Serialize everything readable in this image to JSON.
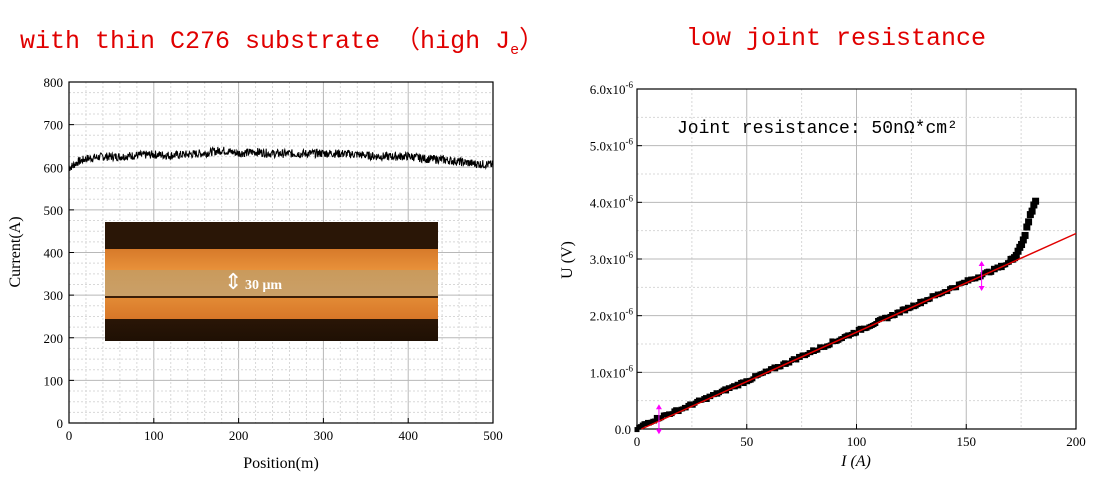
{
  "titles": {
    "left": "with thin C276 substrate （high J",
    "left_sub": "e",
    "left_close": "）",
    "right": "low joint resistance"
  },
  "inset": {
    "label": "30 μm"
  },
  "colors": {
    "title": "#e00000",
    "data": "#000000",
    "fit": "#e00000",
    "marker": "#ff00ff"
  },
  "chart_data": [
    {
      "type": "line",
      "xlabel": "Position(m)",
      "ylabel": "Current(A)",
      "xlim": [
        0,
        500
      ],
      "ylim": [
        0,
        800
      ],
      "xticks": [
        "0",
        "100",
        "200",
        "300",
        "400",
        "500"
      ],
      "yticks": [
        "0",
        "100",
        "200",
        "300",
        "400",
        "500",
        "600",
        "700",
        "800"
      ],
      "grid": true,
      "series": [
        {
          "x": [
            0,
            10,
            20,
            40,
            60,
            80,
            100,
            120,
            140,
            160,
            180,
            200,
            220,
            240,
            260,
            280,
            300,
            320,
            340,
            360,
            380,
            400,
            420,
            440,
            460,
            480,
            500
          ],
          "y": [
            598,
            612,
            620,
            625,
            625,
            628,
            630,
            628,
            630,
            633,
            640,
            633,
            636,
            632,
            632,
            632,
            633,
            632,
            630,
            626,
            625,
            626,
            620,
            618,
            613,
            608,
            606
          ],
          "noise": 10
        }
      ]
    },
    {
      "type": "scatter",
      "xlabel": "I (A)",
      "ylabel": "U (V)",
      "xlim": [
        0,
        200
      ],
      "ylim": [
        0,
        6e-06
      ],
      "xticks": [
        "0",
        "50",
        "100",
        "150",
        "200"
      ],
      "yticks": [
        "0.0",
        "1.0x10-6",
        "2.0x10-6",
        "3.0x10-6",
        "4.0x10-6",
        "5.0x10-6",
        "6.0x10-6"
      ],
      "grid": true,
      "annotation": "Joint resistance: 50nΩ*cm²",
      "series": [
        {
          "x": [
            0,
            5,
            10,
            20,
            50,
            100,
            150,
            165,
            170,
            173,
            175,
            177,
            178,
            179,
            180,
            181,
            182
          ],
          "y": [
            0,
            1.2e-07,
            2e-07,
            3.5e-07,
            8.5e-07,
            1.72e-06,
            2.6e-06,
            2.85e-06,
            2.95e-06,
            3.1e-06,
            3.25e-06,
            3.45e-06,
            3.6e-06,
            3.75e-06,
            3.85e-06,
            4e-06,
            4.05e-06
          ]
        }
      ],
      "fit": {
        "x": [
          2,
          200
        ],
        "y": [
          0,
          3.45e-06
        ]
      },
      "fit_range_markers": [
        10,
        157
      ]
    }
  ]
}
